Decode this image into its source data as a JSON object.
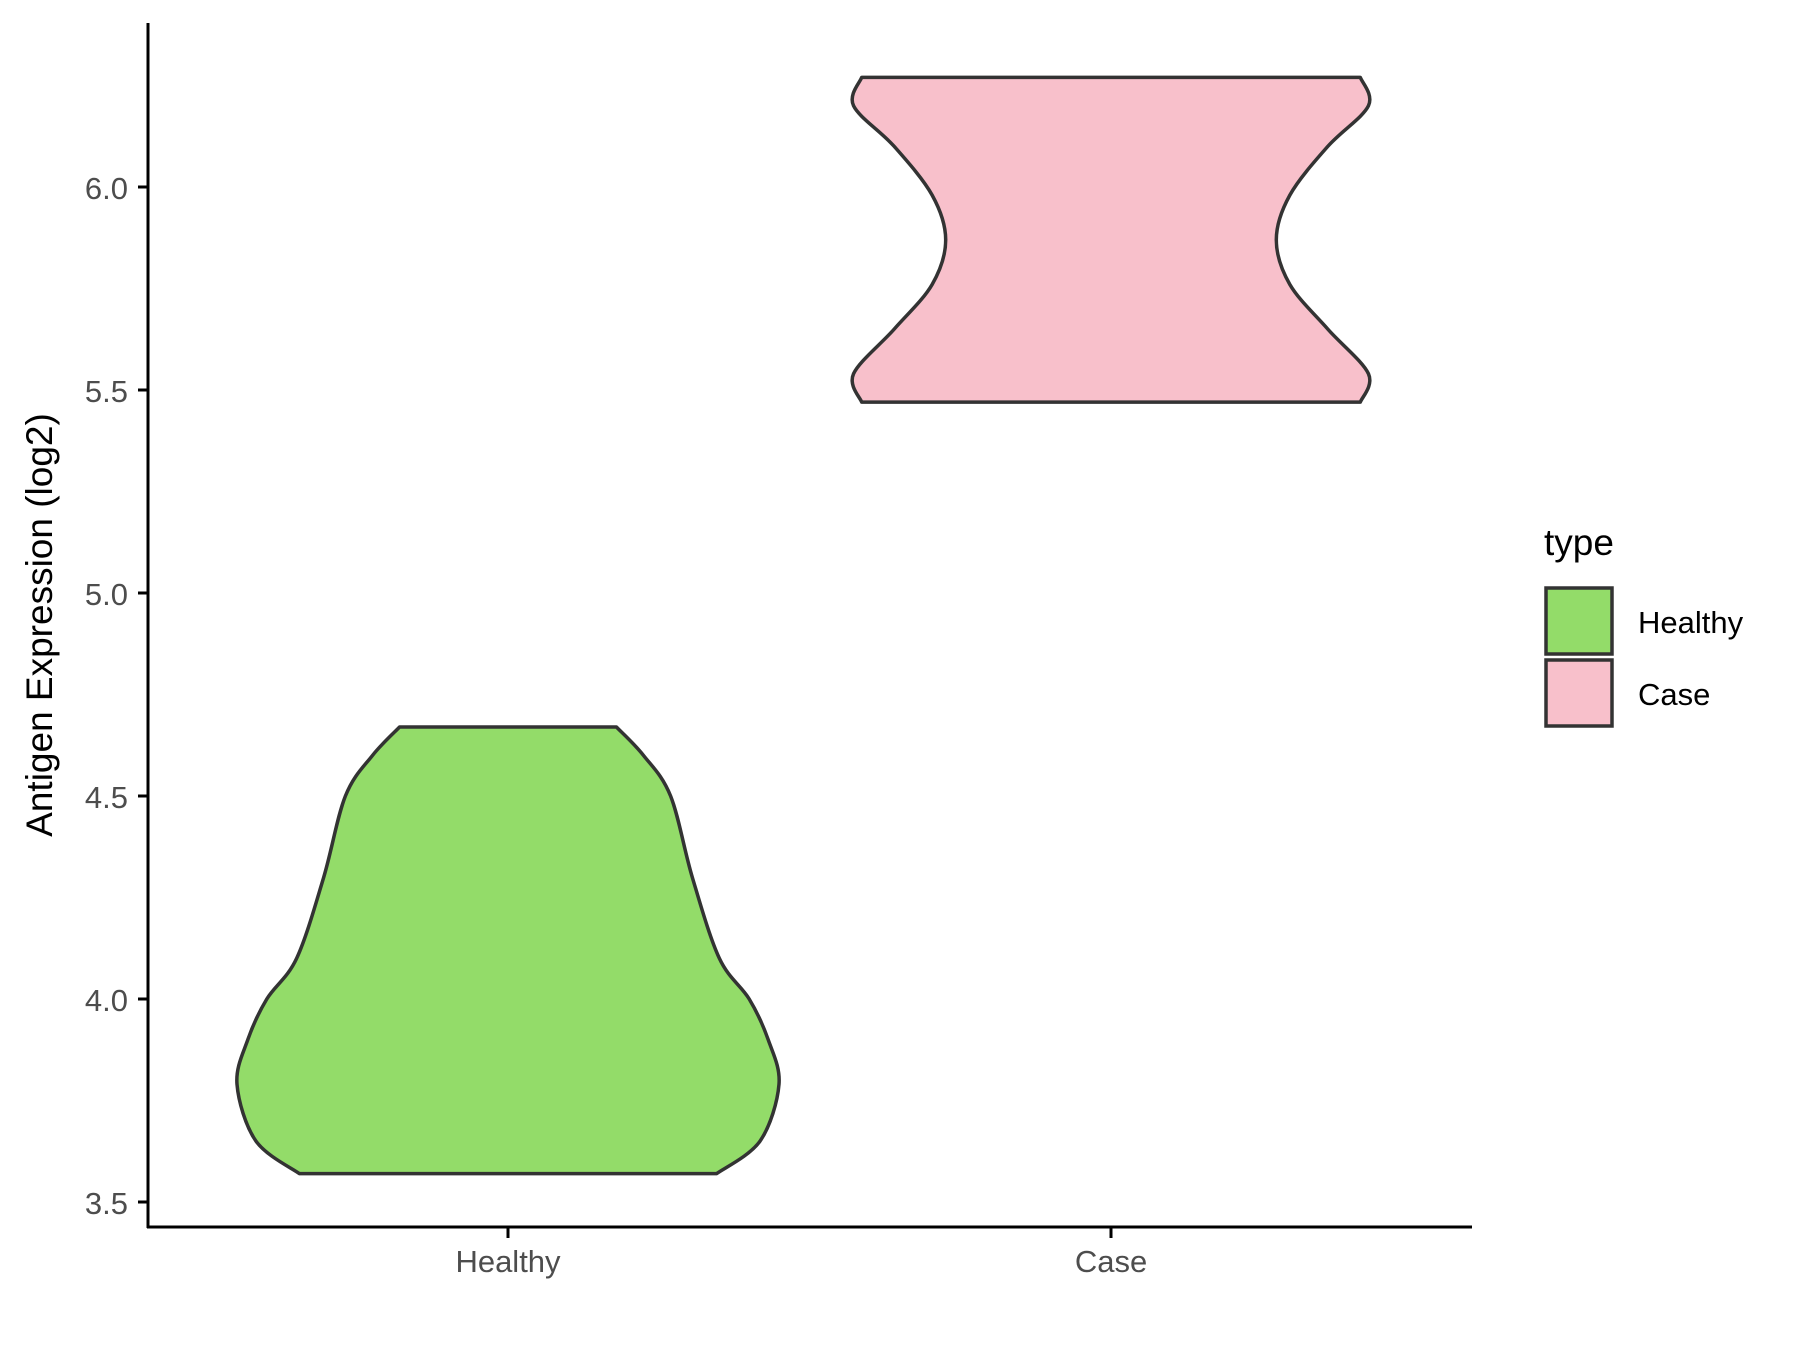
{
  "chart_data": {
    "type": "violin",
    "title": "",
    "xlabel": "",
    "ylabel": "Antigen Expression (log2)",
    "categories": [
      "Healthy",
      "Case"
    ],
    "ylim": [
      3.47,
      6.4
    ],
    "yticks": [
      "3.5",
      "4.0",
      "4.5",
      "5.0",
      "5.5",
      "6.0"
    ],
    "grid": false,
    "legend": {
      "title": "type",
      "placement": "right",
      "entries": [
        "Healthy",
        "Case"
      ]
    },
    "colors": {
      "Healthy": "#93DC69",
      "Case": "#F8C0CB",
      "outline": "#333333"
    },
    "series": [
      {
        "name": "Healthy",
        "range": [
          3.57,
          4.67
        ],
        "density": [
          [
            3.57,
            0.77
          ],
          [
            3.65,
            0.93
          ],
          [
            3.79,
            1.0
          ],
          [
            3.9,
            0.96
          ],
          [
            4.0,
            0.89
          ],
          [
            4.1,
            0.78
          ],
          [
            4.3,
            0.68
          ],
          [
            4.5,
            0.6
          ],
          [
            4.6,
            0.5
          ],
          [
            4.67,
            0.4
          ]
        ]
      },
      {
        "name": "Case",
        "range": [
          5.47,
          6.27
        ],
        "density": [
          [
            5.47,
            0.92
          ],
          [
            5.54,
            0.95
          ],
          [
            5.65,
            0.8
          ],
          [
            5.76,
            0.66
          ],
          [
            5.87,
            0.61
          ],
          [
            5.98,
            0.66
          ],
          [
            6.1,
            0.8
          ],
          [
            6.2,
            0.95
          ],
          [
            6.27,
            0.92
          ]
        ]
      }
    ]
  }
}
